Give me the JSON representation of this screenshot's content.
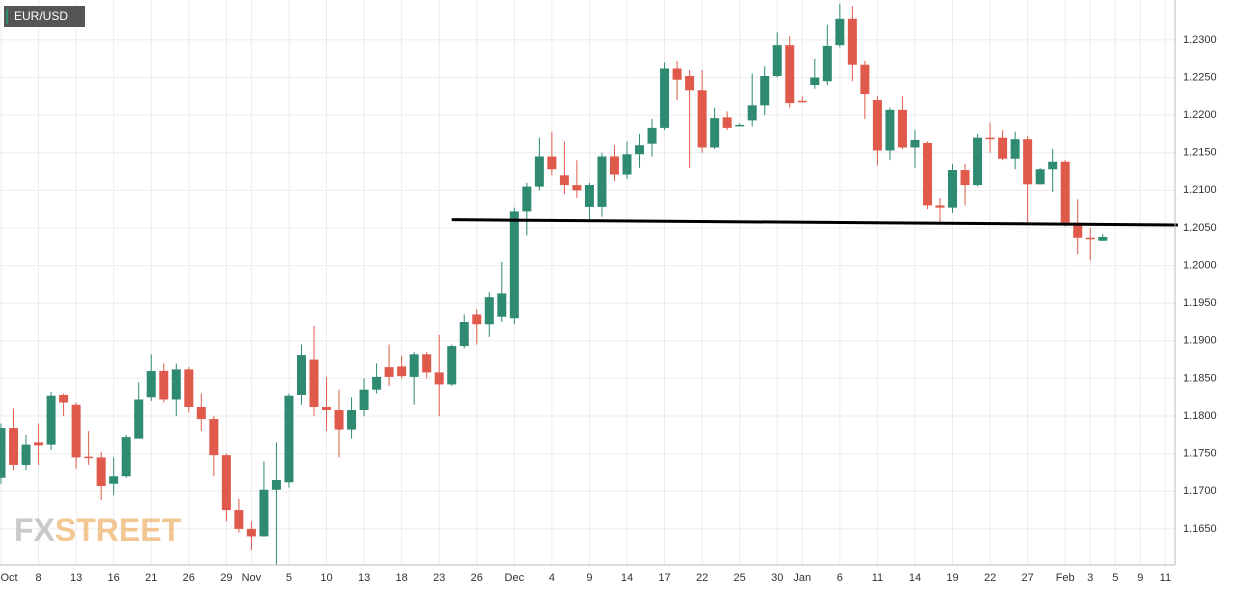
{
  "chart_data": {
    "type": "candlestick",
    "title": "EUR/USD",
    "watermark": [
      "FX",
      "STREET"
    ],
    "categories": [
      "Oct",
      null,
      null,
      "8",
      null,
      null,
      "13",
      null,
      null,
      "16",
      null,
      null,
      "21",
      null,
      null,
      "26",
      null,
      null,
      "29",
      null,
      "Nov",
      null,
      null,
      "5",
      null,
      null,
      "10",
      null,
      null,
      "13",
      null,
      null,
      "18",
      null,
      null,
      "23",
      null,
      null,
      "26",
      null,
      null,
      "Dec",
      null,
      null,
      "4",
      null,
      null,
      "9",
      null,
      null,
      "14",
      null,
      null,
      "17",
      null,
      null,
      "22",
      null,
      null,
      "25",
      null,
      null,
      "30",
      null,
      "Jan",
      null,
      null,
      "6",
      null,
      null,
      "11",
      null,
      null,
      "14",
      null,
      null,
      "19",
      null,
      null,
      "22",
      null,
      null,
      "27",
      null,
      null,
      "Feb",
      null,
      "3",
      null,
      "5",
      null,
      "9",
      null,
      "11"
    ],
    "open": [
      1.1718,
      1.1784,
      1.1735,
      1.1765,
      1.1762,
      1.1828,
      1.1815,
      1.1746,
      1.1745,
      1.171,
      1.172,
      1.177,
      1.1825,
      1.186,
      1.1822,
      1.1862,
      1.1812,
      1.1796,
      1.1748,
      1.1675,
      1.165,
      1.164,
      1.1702,
      1.1712,
      1.1828,
      1.1875,
      1.1812,
      1.1808,
      1.1782,
      1.1808,
      1.1835,
      1.1865,
      1.1866,
      1.1852,
      1.1882,
      1.1858,
      1.1842,
      1.1893,
      1.1935,
      1.1922,
      1.1932,
      1.193,
      1.2072,
      1.2105,
      1.2145,
      1.212,
      1.2107,
      1.2078,
      1.2078,
      1.2145,
      1.2121,
      1.2148,
      1.2162,
      1.2183,
      1.2262,
      1.2252,
      1.2233,
      1.2157,
      1.2197,
      1.2186,
      1.2193,
      1.2213,
      1.2252,
      1.2293,
      1.2219,
      1.224,
      1.2245,
      1.2293,
      1.2328,
      1.2267,
      1.222,
      1.2153,
      1.2207,
      1.2157,
      1.2163,
      1.208,
      1.2077,
      1.2127,
      1.2107,
      1.217,
      1.217,
      1.2142,
      1.2168,
      1.2108,
      1.2128,
      1.2138,
      1.2057,
      1.2037,
      1.2033,
      null,
      null,
      null,
      null,
      null
    ],
    "high": [
      1.179,
      1.181,
      1.1775,
      1.179,
      1.1832,
      1.183,
      1.1818,
      1.178,
      1.1752,
      1.1745,
      1.1775,
      1.1845,
      1.1882,
      1.187,
      1.187,
      1.1865,
      1.183,
      1.18,
      1.175,
      1.169,
      1.166,
      1.174,
      1.1765,
      1.183,
      1.1895,
      1.192,
      1.1852,
      1.1835,
      1.1825,
      1.185,
      1.187,
      1.1895,
      1.188,
      1.1885,
      1.1885,
      1.1908,
      1.1895,
      1.1935,
      1.1942,
      1.1965,
      1.2005,
      1.2077,
      1.211,
      1.217,
      1.2178,
      1.2165,
      1.214,
      1.211,
      1.215,
      1.216,
      1.2165,
      1.2175,
      1.2195,
      1.227,
      1.2272,
      1.226,
      1.226,
      1.221,
      1.2205,
      1.2189,
      1.2255,
      1.2265,
      1.231,
      1.2305,
      1.2225,
      1.2275,
      1.232,
      1.2348,
      1.2345,
      1.2272,
      1.2225,
      1.221,
      1.2225,
      1.218,
      1.2165,
      1.209,
      1.2135,
      1.2135,
      1.2175,
      1.219,
      1.218,
      1.2178,
      1.2172,
      1.213,
      1.2155,
      1.214,
      1.2088,
      1.205,
      1.2042,
      null,
      null,
      null,
      null,
      null
    ],
    "low": [
      1.171,
      1.1728,
      1.1728,
      1.1735,
      1.1755,
      1.18,
      1.173,
      1.1735,
      1.1688,
      1.1695,
      1.1718,
      1.177,
      1.182,
      1.1818,
      1.18,
      1.1805,
      1.178,
      1.172,
      1.166,
      1.1645,
      1.1622,
      1.164,
      1.1602,
      1.1705,
      1.1815,
      1.18,
      1.178,
      1.1745,
      1.177,
      1.18,
      1.183,
      1.184,
      1.185,
      1.1815,
      1.185,
      1.18,
      1.184,
      1.189,
      1.1895,
      1.1905,
      1.1925,
      1.1922,
      1.204,
      1.21,
      1.212,
      1.2095,
      1.209,
      1.2058,
      1.2065,
      1.2112,
      1.2115,
      1.213,
      1.2145,
      1.218,
      1.222,
      1.213,
      1.215,
      1.2155,
      1.218,
      1.2185,
      1.2185,
      1.22,
      1.225,
      1.221,
      1.2217,
      1.2235,
      1.224,
      1.229,
      1.2245,
      1.2195,
      1.2133,
      1.214,
      1.2155,
      1.213,
      1.2075,
      1.2058,
      1.207,
      1.208,
      1.2105,
      1.215,
      1.214,
      1.2128,
      1.2058,
      1.2108,
      1.2098,
      1.2052,
      1.2015,
      1.2007,
      1.2033,
      null,
      null,
      null,
      null,
      null
    ],
    "close": [
      1.1784,
      1.1735,
      1.1762,
      1.1761,
      1.1827,
      1.1818,
      1.1745,
      1.1744,
      1.1707,
      1.172,
      1.1772,
      1.1822,
      1.186,
      1.1822,
      1.1862,
      1.1812,
      1.1796,
      1.1748,
      1.1675,
      1.165,
      1.164,
      1.1702,
      1.1715,
      1.1827,
      1.1881,
      1.1812,
      1.1808,
      1.1782,
      1.1808,
      1.1835,
      1.1852,
      1.1852,
      1.1853,
      1.1882,
      1.1858,
      1.1842,
      1.1893,
      1.1925,
      1.1922,
      1.1958,
      1.1963,
      1.2072,
      1.2105,
      1.2145,
      1.2128,
      1.2107,
      1.21,
      1.2107,
      1.2145,
      1.2121,
      1.2148,
      1.216,
      1.2183,
      1.2262,
      1.2247,
      1.2233,
      1.2157,
      1.2196,
      1.2183,
      1.2187,
      1.2213,
      1.2252,
      1.2293,
      1.2216,
      1.2218,
      1.225,
      1.2292,
      1.2328,
      1.2267,
      1.2228,
      1.2153,
      1.2207,
      1.2157,
      1.2167,
      1.208,
      1.2077,
      1.2127,
      1.2107,
      1.217,
      1.2168,
      1.2142,
      1.2168,
      1.2108,
      1.2128,
      1.2138,
      1.2057,
      1.2037,
      1.2035,
      1.2038,
      null,
      null,
      null,
      null,
      null
    ],
    "up_color": "#2f8a72",
    "down_color": "#e05a4b",
    "trendline": {
      "x": [
        36,
        94
      ],
      "values": [
        1.2061,
        1.2054
      ],
      "color": "#000000"
    },
    "ylim": [
      1.1602,
      1.2353
    ],
    "yticks": [
      {
        "value": 1.165,
        "label": "1.1650"
      },
      {
        "value": 1.17,
        "label": "1.1700"
      },
      {
        "value": 1.175,
        "label": "1.1750"
      },
      {
        "value": 1.18,
        "label": "1.1800"
      },
      {
        "value": 1.185,
        "label": "1.1850"
      },
      {
        "value": 1.19,
        "label": "1.1900"
      },
      {
        "value": 1.195,
        "label": "1.1950"
      },
      {
        "value": 1.2,
        "label": "1.2000"
      },
      {
        "value": 1.205,
        "label": "1.2050"
      },
      {
        "value": 1.21,
        "label": "1.2100"
      },
      {
        "value": 1.215,
        "label": "1.2150"
      },
      {
        "value": 1.22,
        "label": "1.2200"
      },
      {
        "value": 1.225,
        "label": "1.2250"
      },
      {
        "value": 1.23,
        "label": "1.2300"
      }
    ],
    "grid": true
  }
}
